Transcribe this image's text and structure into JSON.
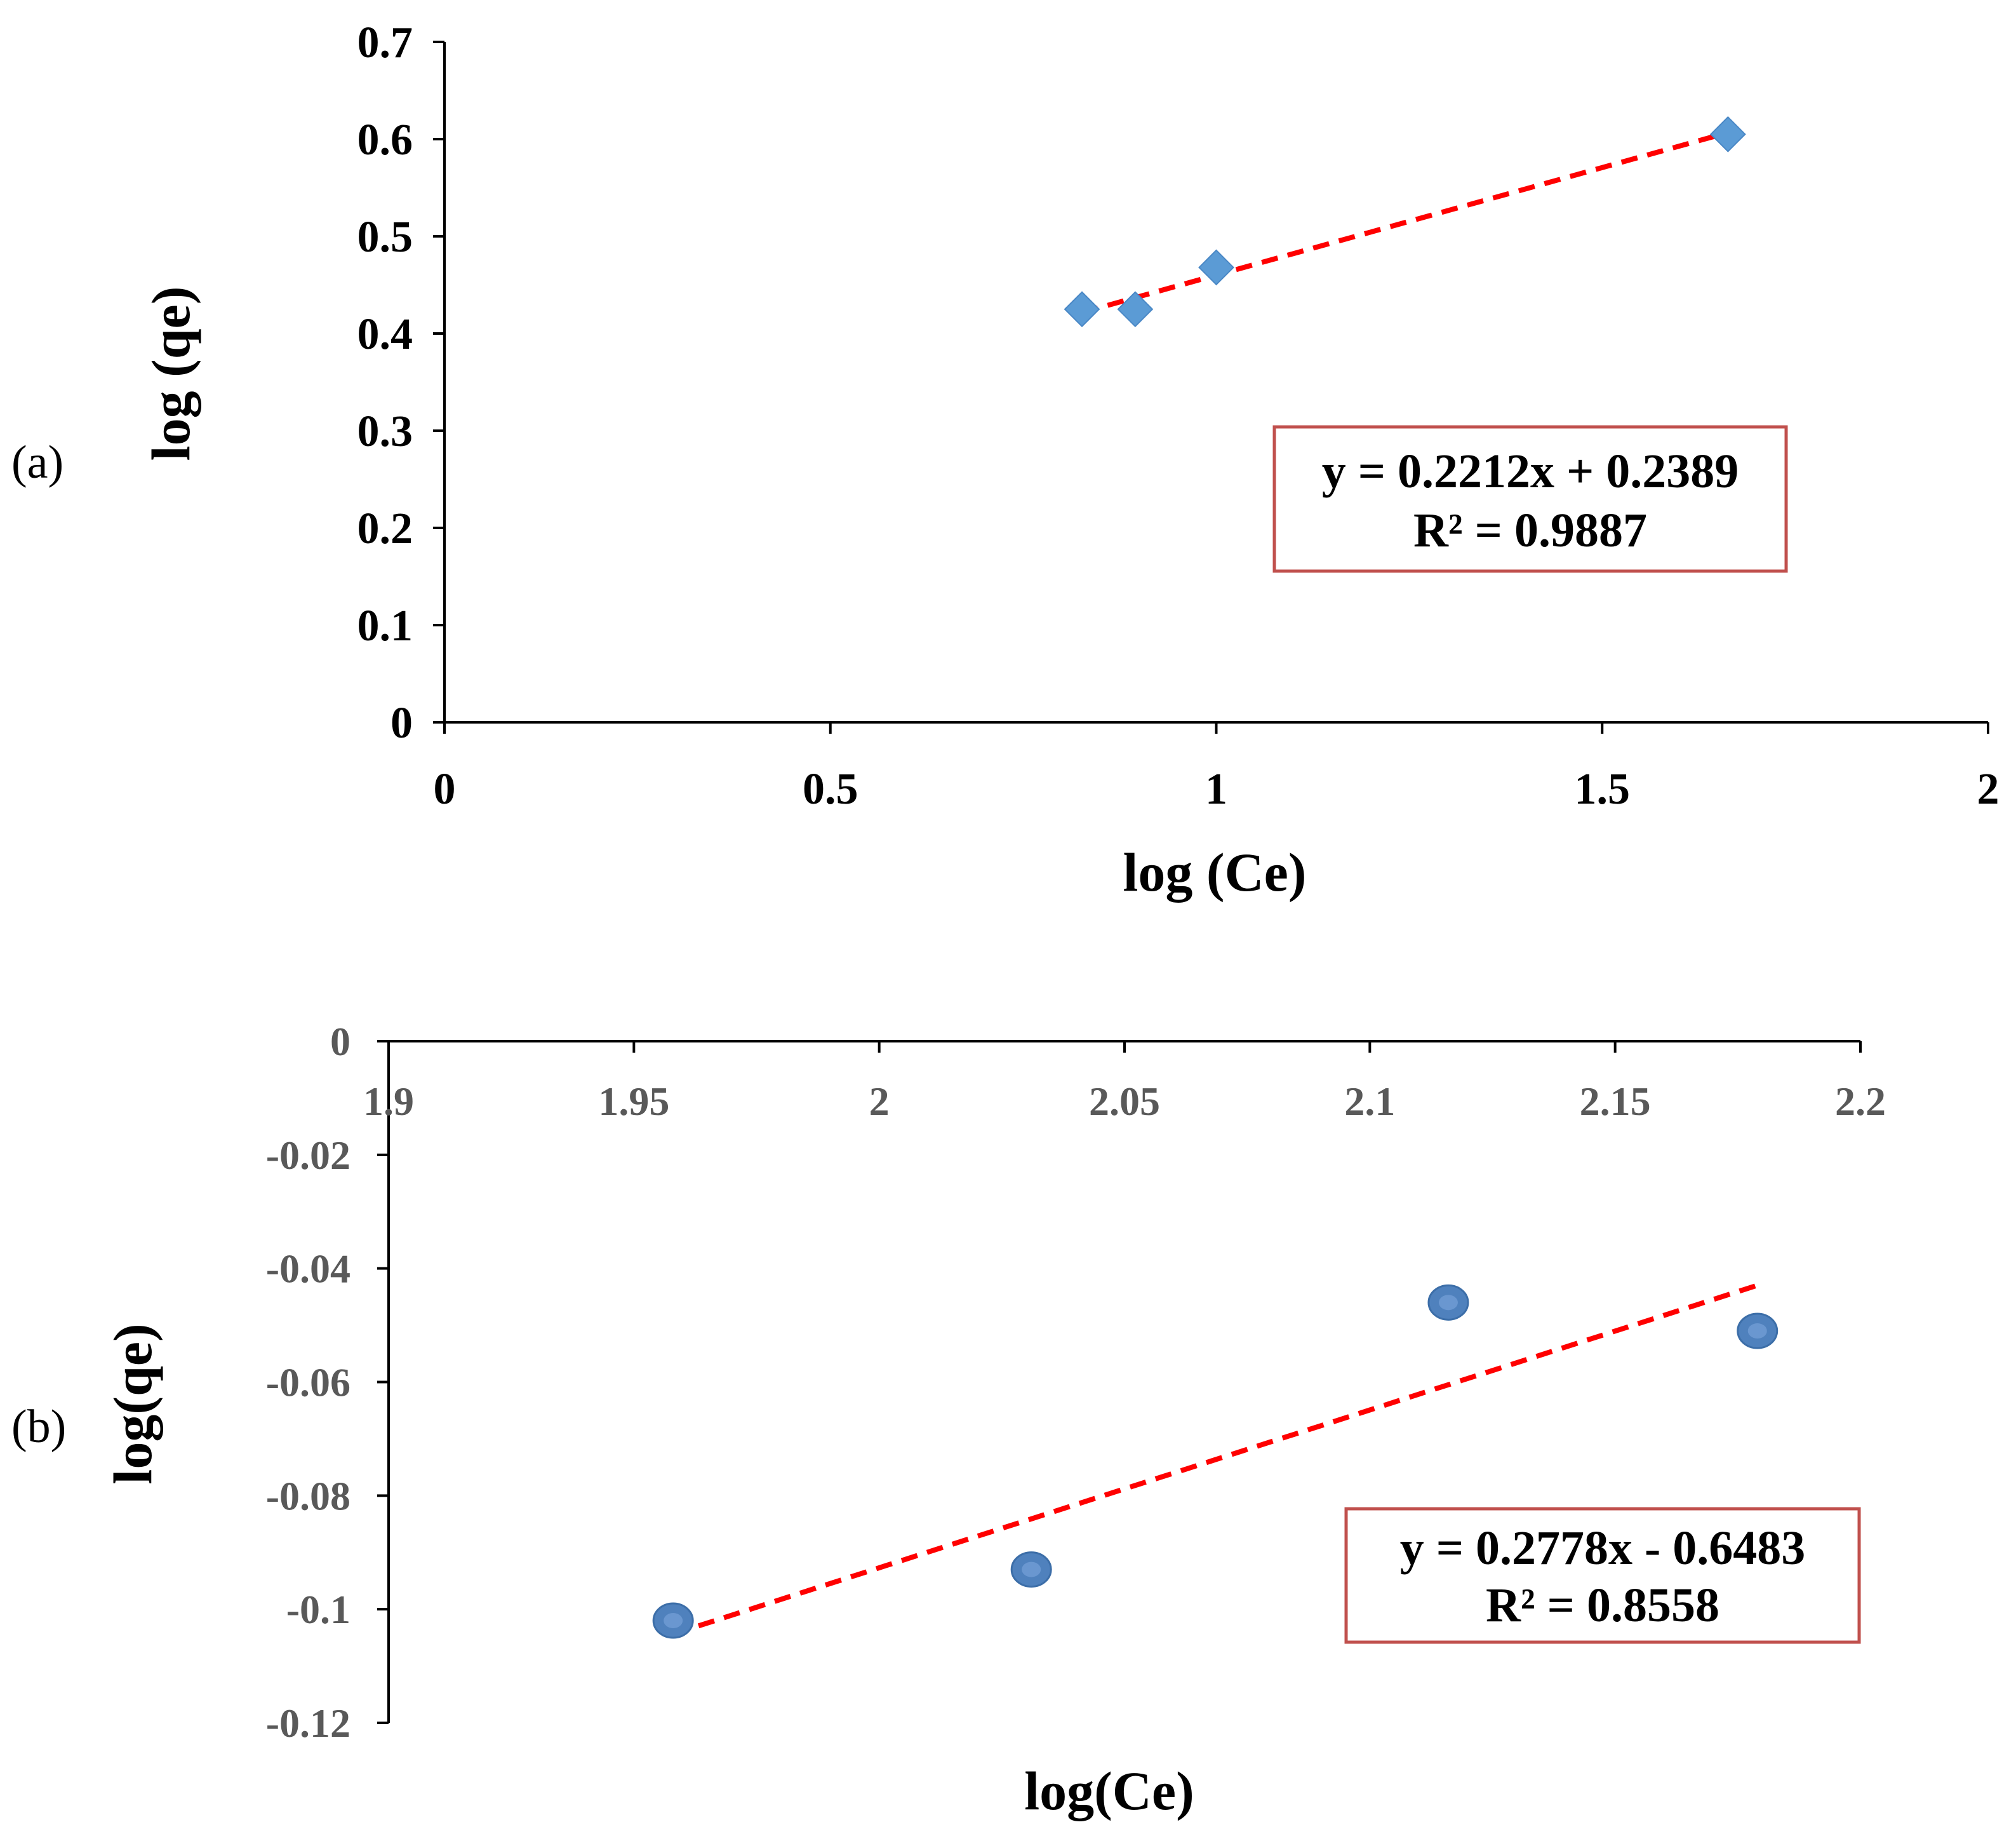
{
  "chart_data": [
    {
      "type": "scatter",
      "panel_label": "(a)",
      "xlabel": "log (Ce)",
      "ylabel": "log (qe)",
      "xlim": [
        0,
        2
      ],
      "ylim": [
        0,
        0.7
      ],
      "x_ticks": [
        "0",
        "0.5",
        "1",
        "1.5",
        "2"
      ],
      "y_ticks": [
        "0",
        "0.1",
        "0.2",
        "0.3",
        "0.4",
        "0.5",
        "0.6",
        "0.7"
      ],
      "marker": "diamond",
      "marker_color": "#5B9BD5",
      "points": [
        {
          "x": 0.826,
          "y": 0.425
        },
        {
          "x": 0.895,
          "y": 0.425
        },
        {
          "x": 1.0,
          "y": 0.468
        },
        {
          "x": 1.663,
          "y": 0.605
        }
      ],
      "trendline": {
        "slope": 0.2212,
        "intercept": 0.2389,
        "x_range": [
          0.826,
          1.663
        ],
        "color": "#FF0000",
        "style": "dashed"
      },
      "equation": "y = 0.2212x + 0.2389",
      "r_squared": "R² = 0.9887",
      "label_box_color": "#C0504D"
    },
    {
      "type": "scatter",
      "panel_label": "(b)",
      "xlabel": "log(Ce)",
      "ylabel": "log(qe)",
      "xlim": [
        1.9,
        2.2
      ],
      "ylim": [
        -0.12,
        0
      ],
      "x_ticks": [
        "1.9",
        "1.95",
        "2",
        "2.05",
        "2.1",
        "2.15",
        "2.2"
      ],
      "y_ticks": [
        "0",
        "-0.02",
        "-0.04",
        "-0.06",
        "-0.08",
        "-0.1",
        "-0.12"
      ],
      "marker": "circle",
      "marker_color": "#4F81BD",
      "points": [
        {
          "x": 1.958,
          "y": -0.102
        },
        {
          "x": 2.031,
          "y": -0.093
        },
        {
          "x": 2.116,
          "y": -0.046
        },
        {
          "x": 2.179,
          "y": -0.051
        }
      ],
      "trendline": {
        "slope": 0.2778,
        "intercept": -0.6483,
        "x_range": [
          1.958,
          2.179
        ],
        "color": "#FF0000",
        "style": "dashed"
      },
      "equation": "y = 0.2778x - 0.6483",
      "r_squared": "R² = 0.8558",
      "label_box_color": "#C0504D"
    }
  ]
}
